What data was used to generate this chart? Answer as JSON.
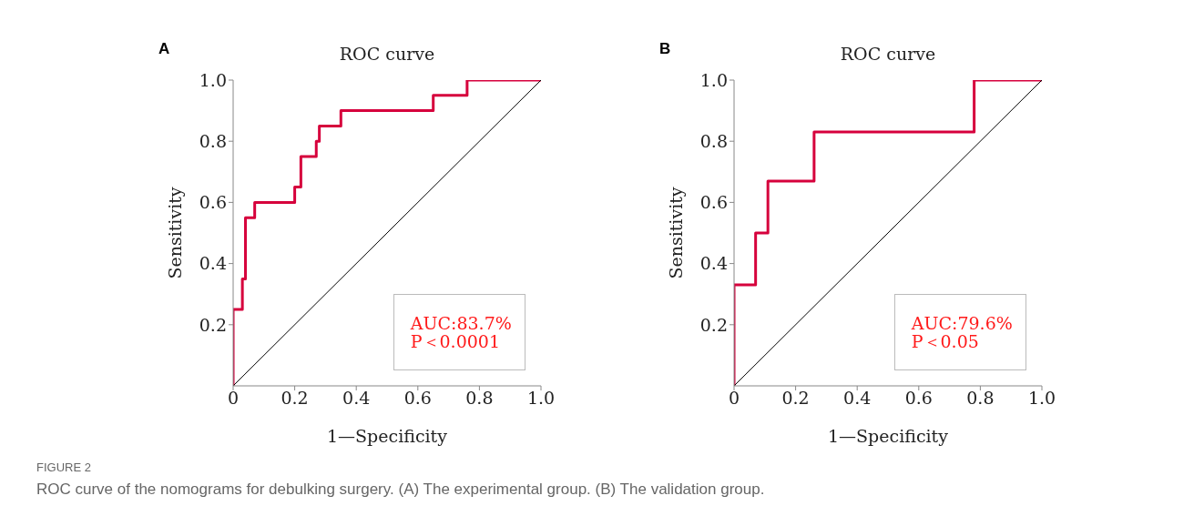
{
  "chart_data": [
    {
      "type": "step",
      "title": "ROC curve",
      "xlabel": "1—Specificity",
      "ylabel": "Sensitivity",
      "xlim": [
        0,
        1
      ],
      "ylim": [
        0,
        1
      ],
      "xticks": [
        0,
        {
          "value": 0.2,
          "label": "0.2"
        },
        {
          "value": 0.4,
          "label": "0.4"
        },
        {
          "value": 0.6,
          "label": "0.6"
        },
        {
          "value": 0.8,
          "label": "0.8"
        },
        {
          "value": 1,
          "label": "1.0"
        }
      ],
      "yticks": [
        {
          "value": 0.2,
          "label": "0.2"
        },
        {
          "value": 0.4,
          "label": "0.4"
        },
        {
          "value": 0.6,
          "label": "0.6"
        },
        {
          "value": 0.8,
          "label": "0.8"
        },
        {
          "value": 1,
          "label": "1.0"
        }
      ],
      "marker": "none",
      "series": [
        {
          "type": "step",
          "color": "#d6003c",
          "x": [
            0,
            0,
            0.03,
            0.04,
            0.07,
            0.2,
            0.22,
            0.27,
            0.28,
            0.35,
            0.65,
            0.76,
            1
          ],
          "values": [
            0,
            0.25,
            0.35,
            0.55,
            0.6,
            0.65,
            0.75,
            0.8,
            0.85,
            0.9,
            0.95,
            1,
            1
          ]
        },
        {
          "type": "line",
          "color": "#000000",
          "x": [
            0,
            1
          ],
          "values": [
            0,
            1
          ]
        }
      ],
      "annotations": [
        "A",
        "AUC:83.7%",
        "P＜0.0001",
        "FIGURE 2",
        "ROC curve of the nomograms for debulking surgery. (A) The experimental group. (B) The validation group."
      ]
    },
    {
      "type": "step",
      "title": "ROC curve",
      "xlabel": "1—Specificity",
      "ylabel": "Sensitivity",
      "xlim": [
        0,
        1
      ],
      "ylim": [
        0,
        1
      ],
      "xticks": [
        0,
        {
          "value": 0.2,
          "label": "0.2"
        },
        {
          "value": 0.4,
          "label": "0.4"
        },
        {
          "value": 0.6,
          "label": "0.6"
        },
        {
          "value": 0.8,
          "label": "0.8"
        },
        {
          "value": 1,
          "label": "1.0"
        }
      ],
      "yticks": [
        {
          "value": 0.2,
          "label": "0.2"
        },
        {
          "value": 0.4,
          "label": "0.4"
        },
        {
          "value": 0.6,
          "label": "0.6"
        },
        {
          "value": 0.8,
          "label": "0.8"
        },
        {
          "value": 1,
          "label": "1.0"
        }
      ],
      "marker": "none",
      "series": [
        {
          "type": "step",
          "color": "#d6003c",
          "x": [
            0,
            0,
            0.07,
            0.11,
            0.26,
            0.78,
            1
          ],
          "values": [
            0,
            0.33,
            0.5,
            0.67,
            0.83,
            1,
            1
          ]
        },
        {
          "type": "line",
          "color": "#000000",
          "x": [
            0,
            1
          ],
          "values": [
            0,
            1
          ]
        }
      ],
      "annotations": [
        "B",
        "AUC:79.6%",
        "P＜0.05"
      ]
    }
  ]
}
